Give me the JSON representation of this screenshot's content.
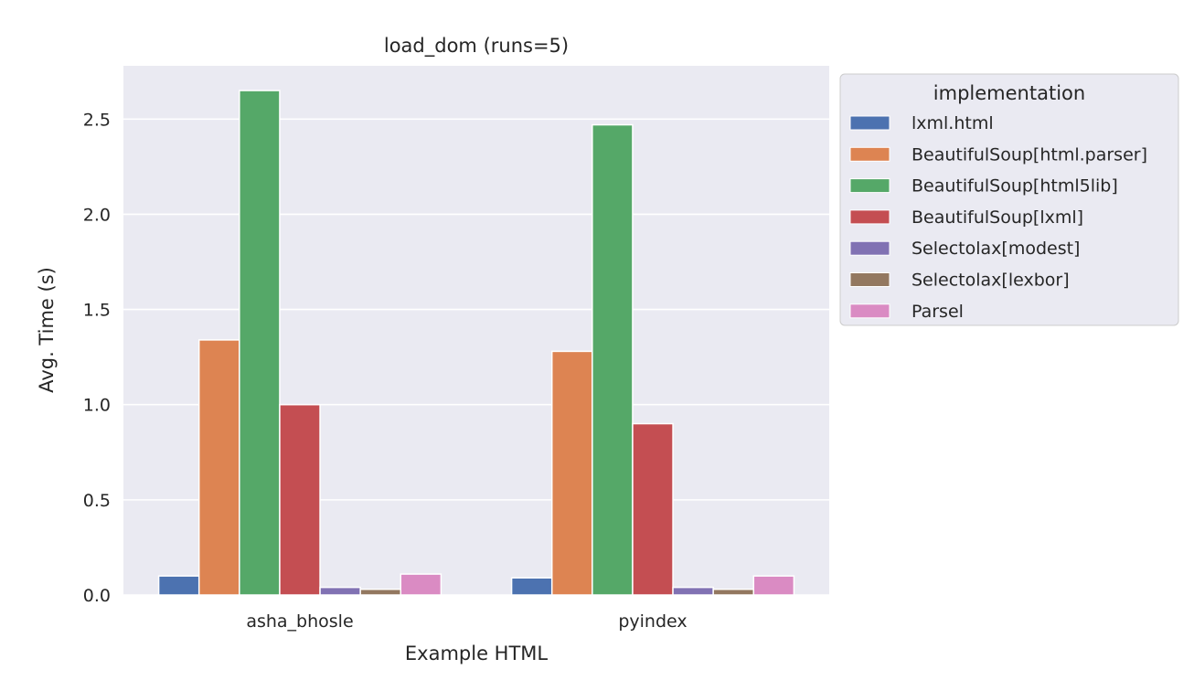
{
  "chart_data": {
    "type": "bar",
    "title": "load_dom (runs=5)",
    "xlabel": "Example HTML",
    "ylabel": "Avg. Time (s)",
    "categories": [
      "asha_bhosle",
      "pyindex"
    ],
    "ylim": [
      0,
      2.78
    ],
    "yticks": [
      "0.0",
      "0.5",
      "1.0",
      "1.5",
      "2.0",
      "2.5"
    ],
    "ytick_values": [
      0,
      0.5,
      1.0,
      1.5,
      2.0,
      2.5
    ],
    "grid": true,
    "legend": {
      "title": "implementation",
      "placement": "outside-right-top"
    },
    "series": [
      {
        "name": "lxml.html",
        "color": "#4c72b0",
        "values": [
          0.1,
          0.09
        ]
      },
      {
        "name": "BeautifulSoup[html.parser]",
        "color": "#dd8452",
        "values": [
          1.34,
          1.28
        ]
      },
      {
        "name": "BeautifulSoup[html5lib]",
        "color": "#55a868",
        "values": [
          2.65,
          2.47
        ]
      },
      {
        "name": "BeautifulSoup[lxml]",
        "color": "#c44e52",
        "values": [
          1.0,
          0.9
        ]
      },
      {
        "name": "Selectolax[modest]",
        "color": "#8172b3",
        "values": [
          0.04,
          0.04
        ]
      },
      {
        "name": "Selectolax[lexbor]",
        "color": "#937860",
        "values": [
          0.03,
          0.03
        ]
      },
      {
        "name": "Parsel",
        "color": "#da8bc3",
        "values": [
          0.11,
          0.1
        ]
      }
    ]
  }
}
